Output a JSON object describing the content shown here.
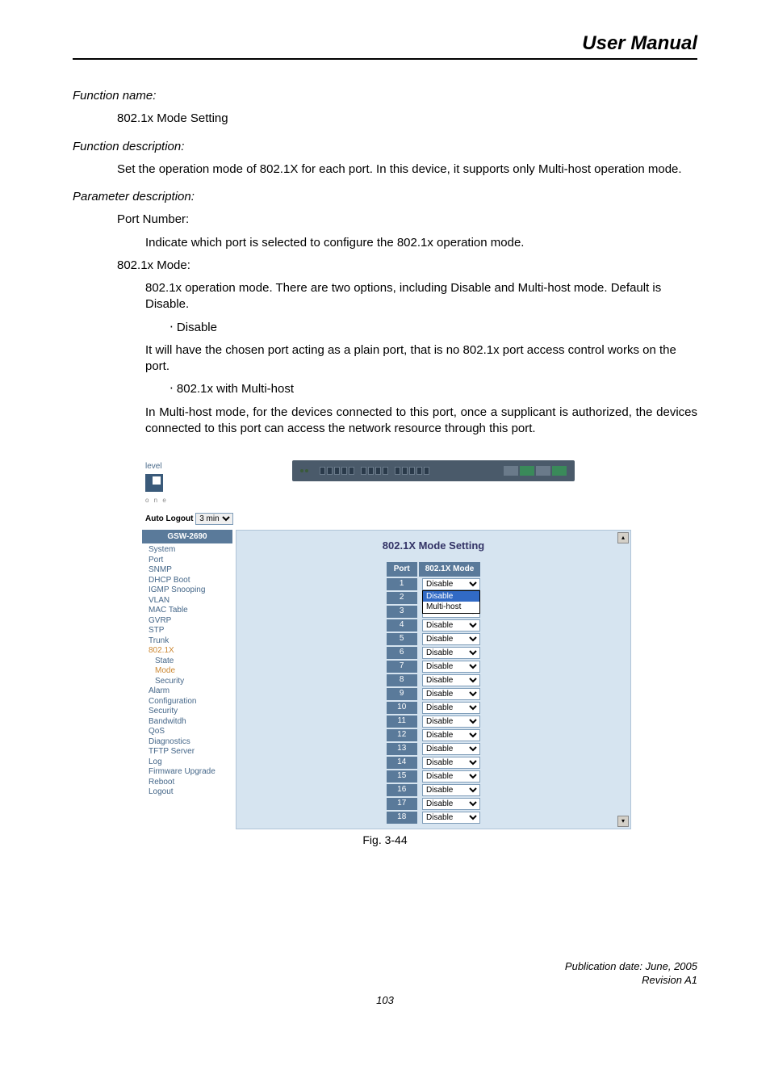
{
  "header": {
    "title": "User Manual"
  },
  "doc": {
    "fn_name_label": "Function name:",
    "fn_name": "802.1x Mode Setting",
    "fn_desc_label": "Function description:",
    "fn_desc": "Set the operation mode of 802.1X for each port. In this device, it supports only Multi-host operation mode.",
    "param_label": "Parameter description:",
    "port_number_hdr": "Port Number:",
    "port_number_txt": "Indicate which port is selected to configure the 802.1x operation mode.",
    "mode_hdr": "802.1x Mode:",
    "mode_txt": "802.1x operation mode. There are two options, including Disable and Multi-host mode. Default is Disable.",
    "bullet1": "‧ Disable",
    "bullet1_txt": "It will have the chosen port acting as a plain port, that is no 802.1x port access control works on the port.",
    "bullet2": "‧ 802.1x with Multi-host",
    "bullet2_txt": "In Multi-host mode, for the devices connected to this port, once a supplicant is authorized, the devices connected to this port can access the network resource through this port."
  },
  "screenshot": {
    "logo_text": "level",
    "logo_sub": "o n e",
    "auto_logout_label": "Auto Logout",
    "auto_logout_value": "3 min",
    "sidebar_header": "GSW-2690",
    "sidebar": [
      {
        "label": "System",
        "cls": ""
      },
      {
        "label": "Port",
        "cls": ""
      },
      {
        "label": "SNMP",
        "cls": ""
      },
      {
        "label": "DHCP Boot",
        "cls": ""
      },
      {
        "label": "IGMP Snooping",
        "cls": ""
      },
      {
        "label": "VLAN",
        "cls": ""
      },
      {
        "label": "MAC Table",
        "cls": ""
      },
      {
        "label": "GVRP",
        "cls": ""
      },
      {
        "label": "STP",
        "cls": ""
      },
      {
        "label": "Trunk",
        "cls": ""
      },
      {
        "label": "802.1X",
        "cls": "sb-active"
      },
      {
        "label": "State",
        "cls": "sb-sub"
      },
      {
        "label": "Mode",
        "cls": "sb-sub sb-active"
      },
      {
        "label": "Security",
        "cls": "sb-sub"
      },
      {
        "label": "Alarm",
        "cls": ""
      },
      {
        "label": "Configuration",
        "cls": ""
      },
      {
        "label": "Security",
        "cls": ""
      },
      {
        "label": "Bandwitdh",
        "cls": ""
      },
      {
        "label": "QoS",
        "cls": ""
      },
      {
        "label": "Diagnostics",
        "cls": ""
      },
      {
        "label": "TFTP Server",
        "cls": ""
      },
      {
        "label": "Log",
        "cls": ""
      },
      {
        "label": "Firmware Upgrade",
        "cls": ""
      },
      {
        "label": "Reboot",
        "cls": ""
      },
      {
        "label": "Logout",
        "cls": ""
      }
    ],
    "panel_title": "802.1X Mode Setting",
    "col_port": "Port",
    "col_mode": "802.1X Mode",
    "rows": [
      {
        "port": "1",
        "mode": "Disable",
        "open": true
      },
      {
        "port": "2",
        "mode": "Disable"
      },
      {
        "port": "3",
        "mode": "Disable"
      },
      {
        "port": "4",
        "mode": "Disable"
      },
      {
        "port": "5",
        "mode": "Disable"
      },
      {
        "port": "6",
        "mode": "Disable"
      },
      {
        "port": "7",
        "mode": "Disable"
      },
      {
        "port": "8",
        "mode": "Disable"
      },
      {
        "port": "9",
        "mode": "Disable"
      },
      {
        "port": "10",
        "mode": "Disable"
      },
      {
        "port": "11",
        "mode": "Disable"
      },
      {
        "port": "12",
        "mode": "Disable"
      },
      {
        "port": "13",
        "mode": "Disable"
      },
      {
        "port": "14",
        "mode": "Disable"
      },
      {
        "port": "15",
        "mode": "Disable"
      },
      {
        "port": "16",
        "mode": "Disable"
      },
      {
        "port": "17",
        "mode": "Disable"
      },
      {
        "port": "18",
        "mode": "Disable"
      }
    ],
    "options": [
      "Disable",
      "Multi-host"
    ],
    "last_row_mode": "Disable"
  },
  "caption": "Fig. 3-44",
  "footer": {
    "pub": "Publication date: June, 2005",
    "rev": "Revision A1",
    "page": "103"
  },
  "colors": {
    "header_bg": "#5a7a9a",
    "panel_bg": "#d6e4f0",
    "sidebar_text": "#446688",
    "active": "#cc8833"
  }
}
